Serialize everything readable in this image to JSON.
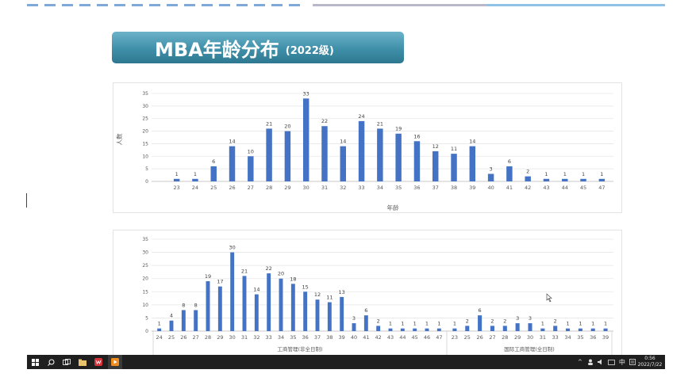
{
  "slide": {
    "title_main": "MBA年龄分布",
    "title_sub": "(2022级)"
  },
  "chart_data": [
    {
      "type": "bar",
      "ylabel": "人数",
      "xlabel": "年龄",
      "ylim": [
        0,
        35
      ],
      "yticks": [
        0,
        5,
        10,
        15,
        20,
        25,
        30,
        35
      ],
      "grid": true,
      "color": "#4472c4",
      "categories": [
        "23",
        "24",
        "25",
        "26",
        "27",
        "28",
        "29",
        "30",
        "31",
        "32",
        "33",
        "34",
        "35",
        "36",
        "37",
        "38",
        "39",
        "40",
        "41",
        "42",
        "43",
        "44",
        "45",
        "47"
      ],
      "values": [
        1,
        1,
        6,
        14,
        10,
        21,
        20,
        33,
        22,
        14,
        24,
        21,
        19,
        16,
        12,
        11,
        14,
        3,
        6,
        2,
        1,
        1,
        1,
        1
      ]
    },
    {
      "type": "bar",
      "ylim": [
        0,
        35
      ],
      "yticks": [
        0,
        5,
        10,
        15,
        20,
        25,
        30,
        35
      ],
      "grid": true,
      "color": "#4472c4",
      "groups": [
        {
          "name": "工商管理(非全日制)",
          "categories": [
            "24",
            "25",
            "26",
            "27",
            "28",
            "29",
            "30",
            "31",
            "32",
            "33",
            "34",
            "35",
            "36",
            "37",
            "38",
            "39",
            "40",
            "41",
            "42",
            "43",
            "44",
            "45",
            "46",
            "47"
          ],
          "values": [
            1,
            4,
            8,
            8,
            19,
            17,
            30,
            21,
            14,
            22,
            20,
            18,
            15,
            12,
            11,
            13,
            3,
            6,
            2,
            1,
            1,
            1,
            1,
            1
          ]
        },
        {
          "name": "国际工商管理(全日制)",
          "categories": [
            "23",
            "25",
            "26",
            "27",
            "28",
            "29",
            "30",
            "31",
            "33",
            "34",
            "35",
            "36",
            "39"
          ],
          "values": [
            1,
            2,
            6,
            2,
            2,
            3,
            3,
            1,
            2,
            1,
            1,
            1,
            1
          ]
        }
      ]
    }
  ],
  "taskbar": {
    "clock_time": "0:56",
    "clock_date": "2022/7/22",
    "ime_label": "中",
    "apps": [
      "windows-start",
      "search",
      "task-view",
      "file-explorer",
      "wps",
      "media-player"
    ]
  },
  "colors": {
    "bar": "#4472c4",
    "title_gradient_top": "#6cb3c9",
    "title_gradient_bottom": "#2e7890",
    "taskbar": "#1f1f1f"
  }
}
